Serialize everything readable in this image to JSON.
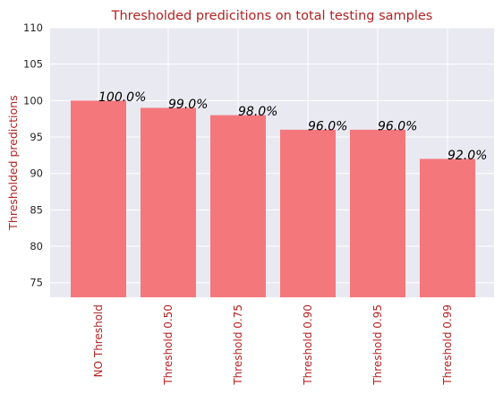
{
  "chart_data": {
    "type": "bar",
    "title": "Thresholded predicitions on total testing samples",
    "xlabel": "",
    "ylabel": "Thresholded predictions",
    "categories": [
      "NO Threshold",
      "Threshold 0.50",
      "Threshold 0.75",
      "Threshold 0.90",
      "Threshold 0.95",
      "Threshold 0.99"
    ],
    "values": [
      100,
      99,
      98,
      96,
      96,
      92
    ],
    "data_labels": [
      "100.0%",
      "99.0%",
      "98.0%",
      "96.0%",
      "96.0%",
      "92.0%"
    ],
    "ylim": [
      73,
      110
    ],
    "yticks": [
      75,
      80,
      85,
      90,
      95,
      100,
      105,
      110
    ],
    "grid": true,
    "colors": {
      "bar": "#f4777c",
      "plot_background": "#e9e9f1",
      "grid": "#ffffff",
      "title": "#b22222",
      "ylabel": "#b22222",
      "xtick": "#b22222"
    }
  }
}
